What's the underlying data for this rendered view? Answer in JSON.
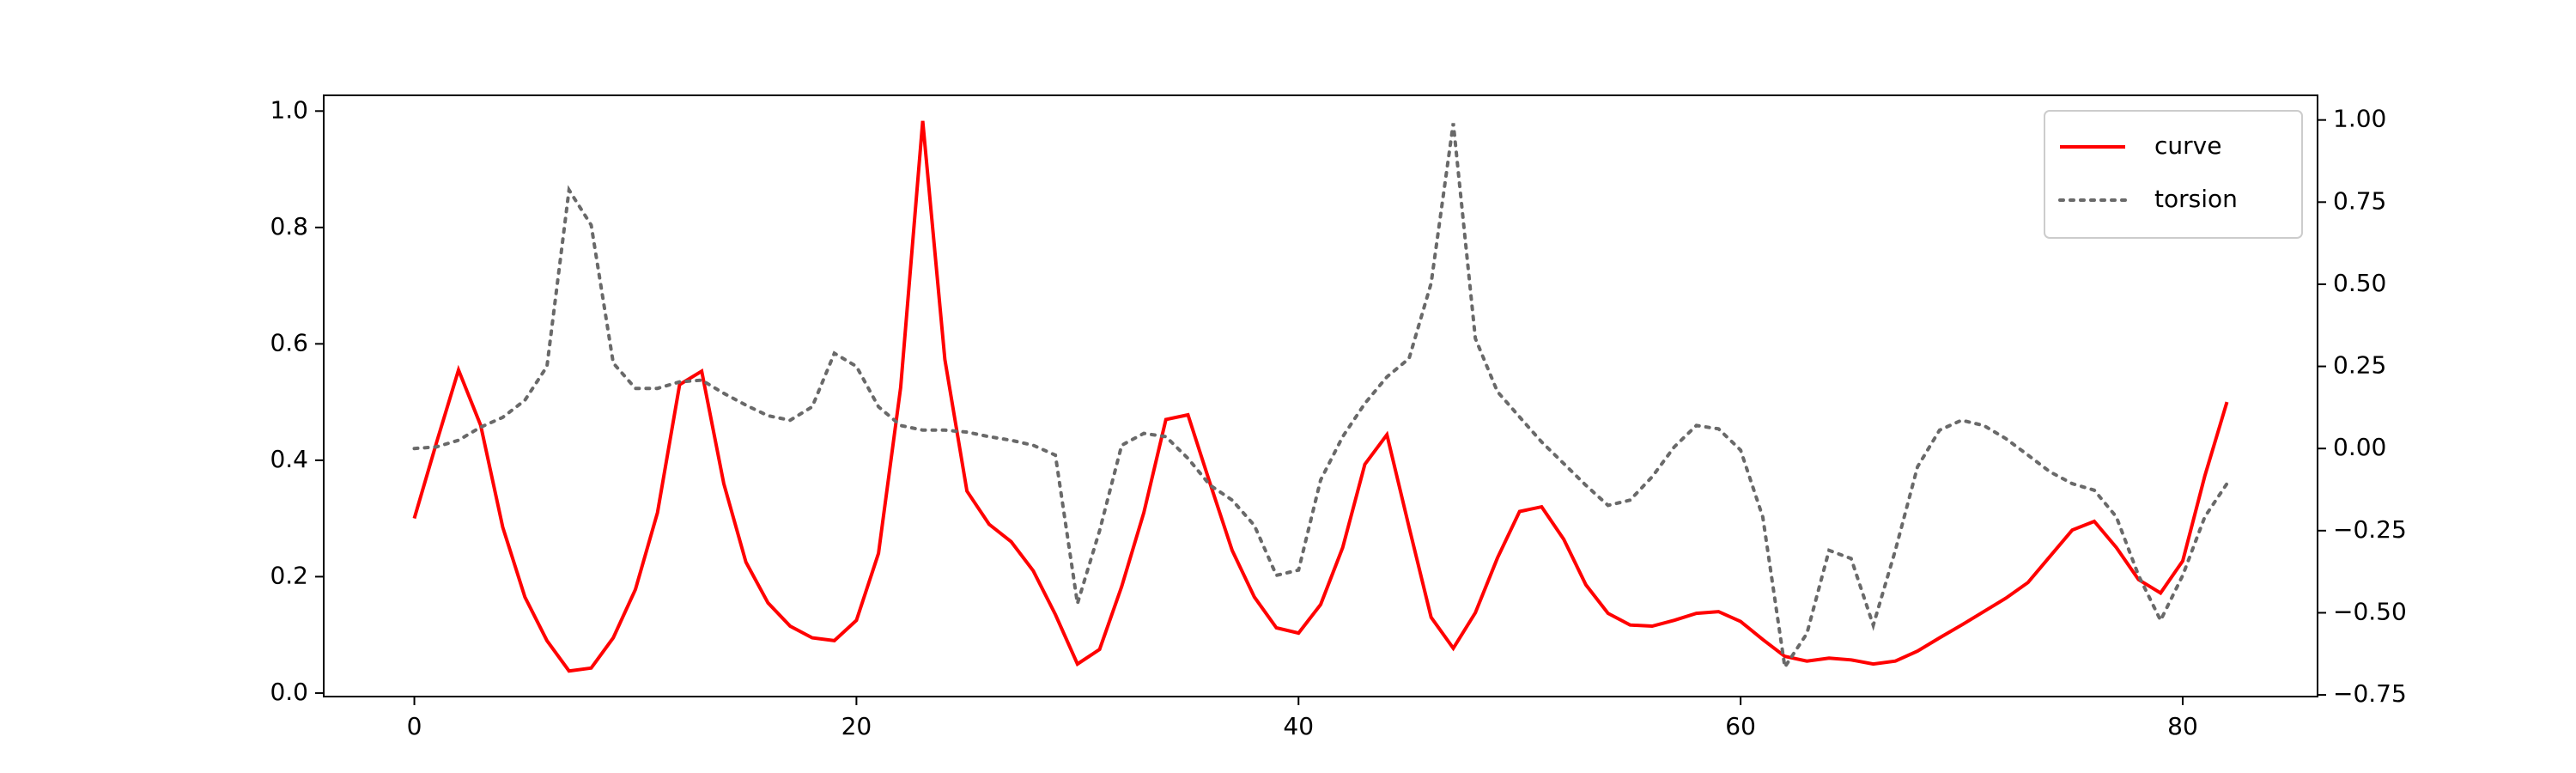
{
  "chart_data": {
    "type": "line",
    "x": [
      0,
      1,
      2,
      3,
      4,
      5,
      6,
      7,
      8,
      9,
      10,
      11,
      12,
      13,
      14,
      15,
      16,
      17,
      18,
      19,
      20,
      21,
      22,
      23,
      24,
      25,
      26,
      27,
      28,
      29,
      30,
      31,
      32,
      33,
      34,
      35,
      36,
      37,
      38,
      39,
      40,
      41,
      42,
      43,
      44,
      45,
      46,
      47,
      48,
      49,
      50,
      51,
      52,
      53,
      54,
      55,
      56,
      57,
      58,
      59,
      60,
      61,
      62,
      63,
      64,
      65,
      66,
      67,
      68,
      69,
      70,
      71,
      72,
      73,
      74,
      75,
      76,
      77,
      78,
      79,
      80,
      81,
      82
    ],
    "series": [
      {
        "name": "curve",
        "color": "#ff0000",
        "dash": "solid",
        "values": [
          0.3,
          0.43,
          0.555,
          0.46,
          0.285,
          0.165,
          0.09,
          0.038,
          0.043,
          0.095,
          0.178,
          0.31,
          0.53,
          0.553,
          0.36,
          0.225,
          0.155,
          0.115,
          0.095,
          0.09,
          0.125,
          0.24,
          0.525,
          0.983,
          0.573,
          0.347,
          0.29,
          0.26,
          0.21,
          0.135,
          0.05,
          0.075,
          0.183,
          0.31,
          0.47,
          0.478,
          0.36,
          0.245,
          0.165,
          0.112,
          0.103,
          0.152,
          0.25,
          0.393,
          0.444,
          0.285,
          0.13,
          0.077,
          0.138,
          0.232,
          0.312,
          0.32,
          0.264,
          0.186,
          0.137,
          0.117,
          0.115,
          0.125,
          0.137,
          0.14,
          0.123,
          0.092,
          0.063,
          0.055,
          0.06,
          0.057,
          0.05,
          0.055,
          0.072,
          0.095,
          0.117,
          0.14,
          0.163,
          0.19,
          0.235,
          0.28,
          0.295,
          0.25,
          0.195,
          0.172,
          0.227,
          0.373,
          0.5
        ]
      },
      {
        "name": "torsion",
        "color": "#696969",
        "dash": "dotted",
        "axis": "y2",
        "values": [
          0.0,
          0.005,
          0.025,
          0.065,
          0.095,
          0.147,
          0.25,
          0.787,
          0.68,
          0.26,
          0.183,
          0.183,
          0.203,
          0.208,
          0.168,
          0.132,
          0.1,
          0.086,
          0.127,
          0.29,
          0.25,
          0.127,
          0.07,
          0.056,
          0.056,
          0.05,
          0.036,
          0.025,
          0.01,
          -0.02,
          -0.472,
          -0.25,
          0.01,
          0.046,
          0.036,
          -0.03,
          -0.112,
          -0.157,
          -0.234,
          -0.386,
          -0.37,
          -0.096,
          0.036,
          0.137,
          0.218,
          0.274,
          0.503,
          0.99,
          0.335,
          0.173,
          0.096,
          0.02,
          -0.046,
          -0.112,
          -0.173,
          -0.157,
          -0.086,
          0.005,
          0.07,
          0.06,
          -0.005,
          -0.208,
          -0.665,
          -0.563,
          -0.31,
          -0.335,
          -0.538,
          -0.31,
          -0.056,
          0.056,
          0.086,
          0.07,
          0.03,
          -0.02,
          -0.071,
          -0.107,
          -0.127,
          -0.208,
          -0.386,
          -0.523,
          -0.386,
          -0.208,
          -0.107
        ]
      }
    ],
    "xlim": [
      -4.1,
      86.1
    ],
    "xticks": [
      0,
      20,
      40,
      60,
      80
    ],
    "ylim": [
      -0.006,
      1.027
    ],
    "yticks": [
      {
        "value": 0,
        "label": "0.0"
      },
      0.2,
      0.4,
      0.6,
      0.8,
      {
        "value": 1,
        "label": "1.0"
      }
    ],
    "y2lim": [
      -0.755,
      1.075
    ],
    "y2ticks": [
      {
        "value": -0.75,
        "label": "−0.75"
      },
      {
        "value": -0.5,
        "label": "−0.50"
      },
      {
        "value": -0.25,
        "label": "−0.25"
      },
      {
        "value": 0,
        "label": "0.00"
      },
      {
        "value": 0.25,
        "label": "0.25"
      },
      {
        "value": 0.5,
        "label": "0.50"
      },
      {
        "value": 0.75,
        "label": "0.75"
      },
      {
        "value": 1,
        "label": "1.00"
      }
    ],
    "legend": "upper right"
  }
}
